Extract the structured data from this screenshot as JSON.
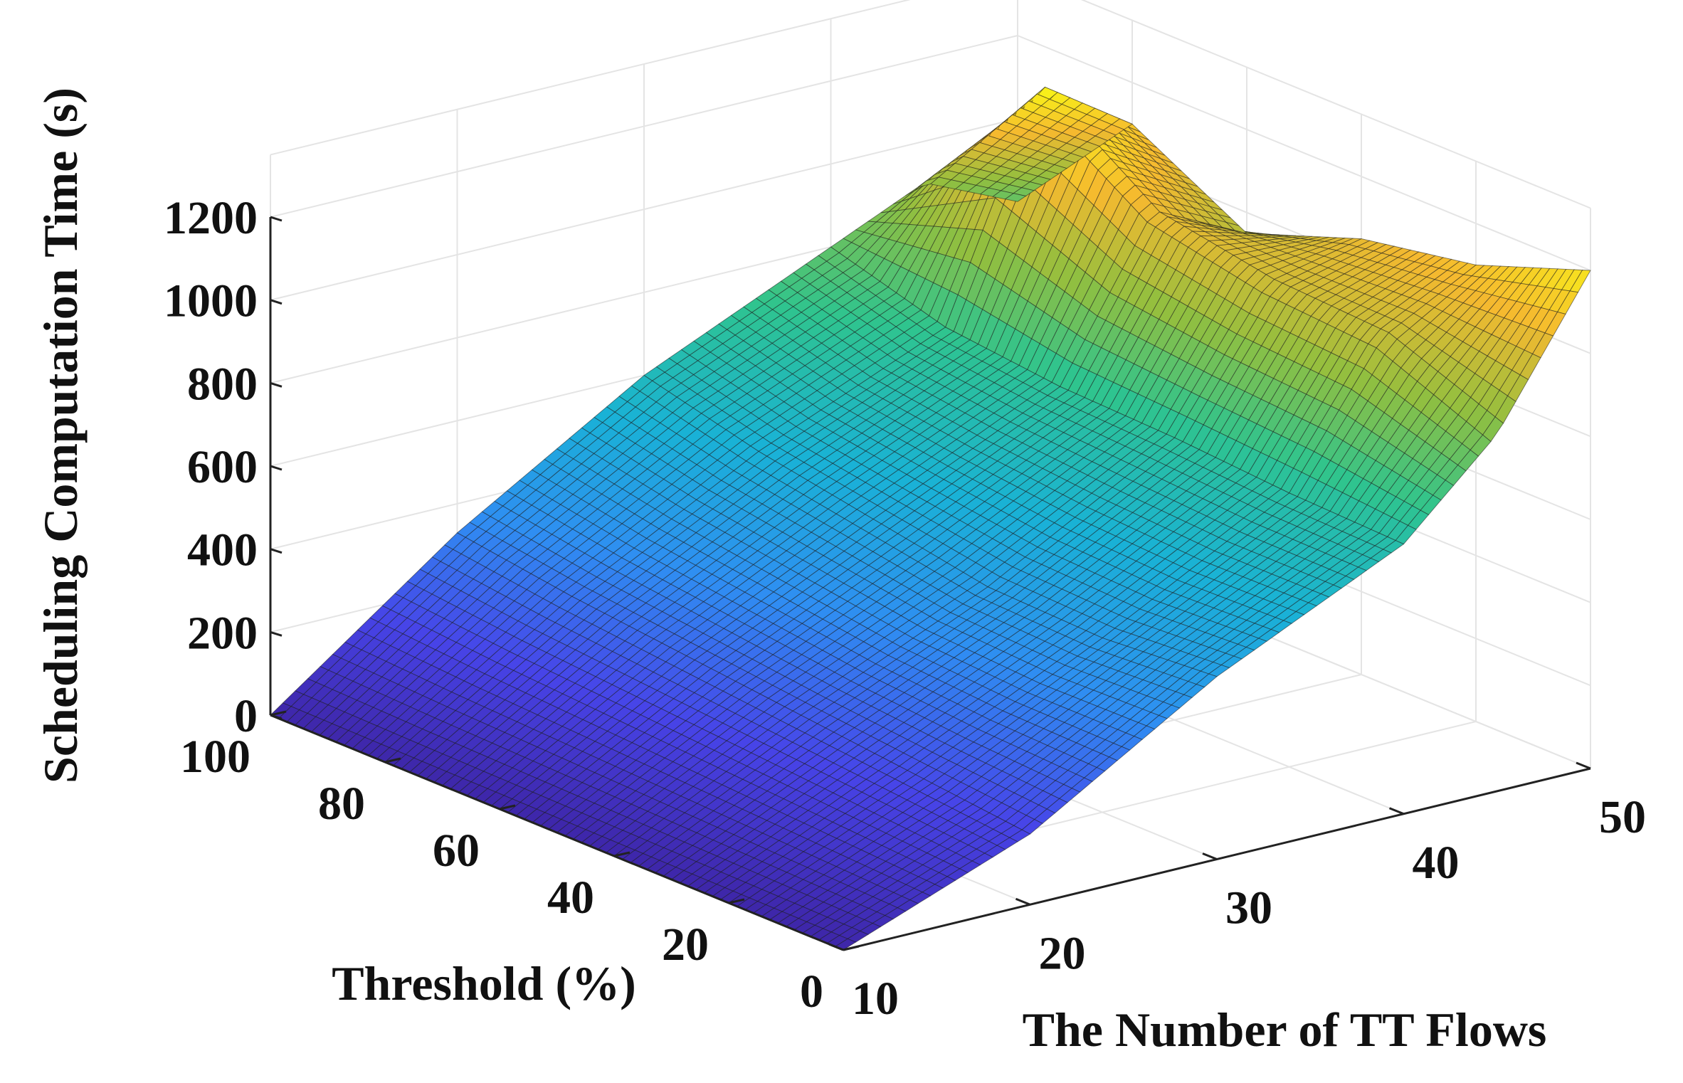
{
  "chart_data": {
    "type": "surface",
    "title": "",
    "xlabel": "The Number of TT Flows",
    "ylabel": "Threshold (%)",
    "zlabel": "Scheduling Computation Time (s)",
    "xlim": [
      10,
      50
    ],
    "ylim": [
      0,
      100
    ],
    "zlim": [
      0,
      1200
    ],
    "xticks": [
      "10",
      "20",
      "30",
      "40",
      "50"
    ],
    "yticks": [
      "0",
      "20",
      "40",
      "60",
      "80",
      "100"
    ],
    "zticks": [
      "0",
      "200",
      "400",
      "600",
      "800",
      "1000",
      "1200"
    ],
    "grid": true,
    "colormap": "parula",
    "colormap_stops": [
      "#3e26a8",
      "#4744e8",
      "#2f8ef2",
      "#19b2d6",
      "#2fc48e",
      "#92bf3f",
      "#f5b92f",
      "#f9fb15"
    ],
    "x": [
      10,
      20,
      30,
      40,
      45,
      50
    ],
    "y": [
      0,
      20,
      40,
      60,
      80,
      100
    ],
    "z": [
      [
        0,
        0,
        0,
        0,
        0,
        0
      ],
      [
        170,
        200,
        230,
        260,
        290,
        330
      ],
      [
        440,
        420,
        430,
        480,
        530,
        600
      ],
      [
        650,
        660,
        680,
        690,
        720,
        800
      ],
      [
        860,
        980,
        1000,
        1060,
        1250,
        900
      ],
      [
        1200,
        1100,
        1050,
        950,
        1100,
        800
      ]
    ],
    "z_note": "rows = TT flows (x order), columns = threshold (y order)"
  }
}
